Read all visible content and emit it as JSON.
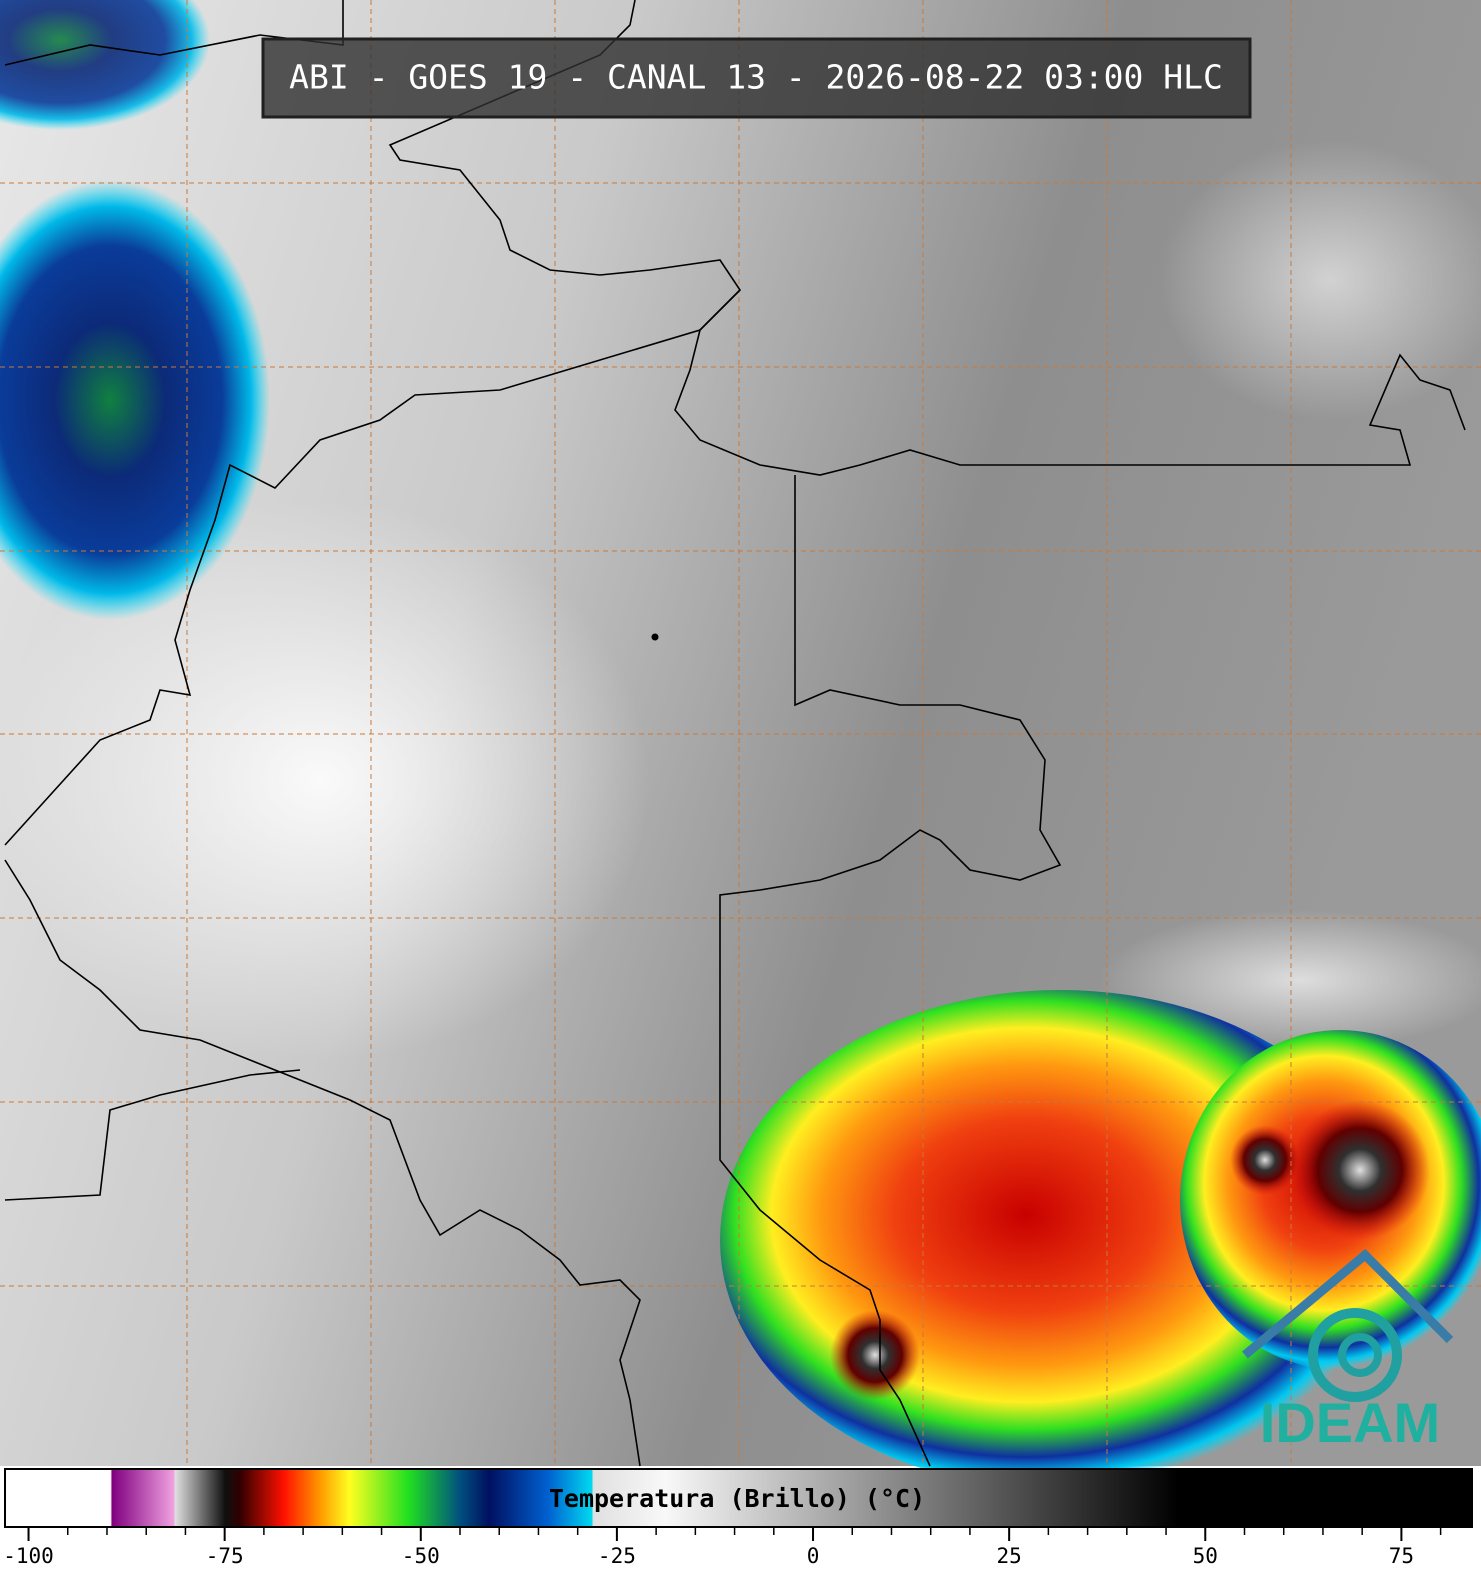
{
  "title": "ABI - GOES 19 - CANAL 13 - 2026-08-22 03:00 HLC",
  "logo": "IDEAM",
  "colorbar": {
    "label": "Temperatura (Brillo) (°C)",
    "range": [
      -103,
      84
    ],
    "ticks": [
      -100,
      -75,
      -50,
      -25,
      0,
      25,
      50,
      75
    ],
    "minor_ticks": [
      -95,
      -90,
      -85,
      -80,
      -70,
      -65,
      -60,
      -55,
      -45,
      -40,
      -35,
      -30,
      -20,
      -15,
      -10,
      -5,
      5,
      10,
      15,
      20,
      30,
      35,
      40,
      45,
      55,
      60,
      65,
      70,
      80
    ]
  }
}
